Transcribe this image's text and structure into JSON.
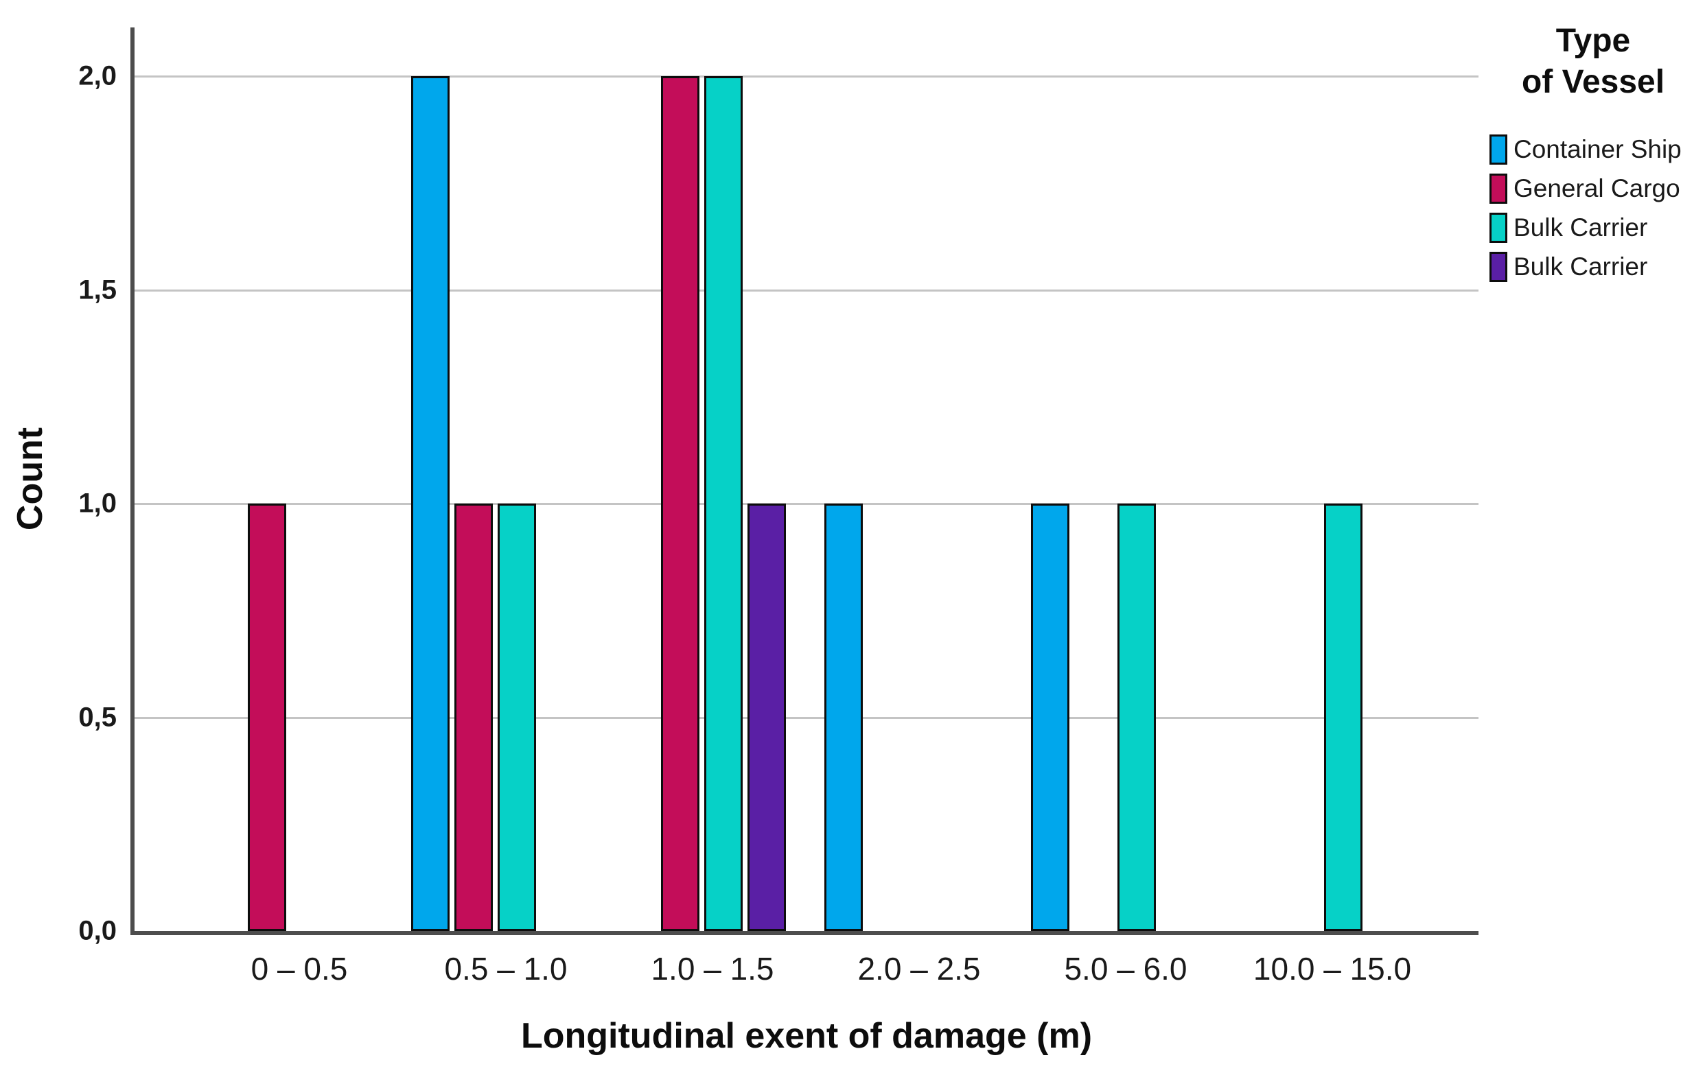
{
  "legend": {
    "title_line1": "Type",
    "title_line2": "of Vessel"
  },
  "chart_data": {
    "type": "bar",
    "title": "",
    "xlabel": "Longitudinal exent of damage (m)",
    "ylabel": "Count",
    "categories": [
      "0 – 0.5",
      "0.5 – 1.0",
      "1.0 – 1.5",
      "2.0 – 2.5",
      "5.0 – 6.0",
      "10.0 – 15.0"
    ],
    "series": [
      {
        "name": "Container Ship",
        "color": "#00a7ec",
        "values": [
          0,
          2,
          0,
          1,
          1,
          0
        ]
      },
      {
        "name": "General Cargo",
        "color": "#c30d59",
        "values": [
          1,
          1,
          2,
          0,
          0,
          0
        ]
      },
      {
        "name": "Bulk Carrier",
        "color": "#06d1c7",
        "values": [
          0,
          1,
          2,
          0,
          1,
          1
        ]
      },
      {
        "name": "Bulk Carrier",
        "color": "#5a1fa5",
        "values": [
          0,
          0,
          1,
          0,
          0,
          0
        ]
      }
    ],
    "y_ticks": [
      {
        "label": "0,0",
        "value": 0.0
      },
      {
        "label": "0,5",
        "value": 0.5
      },
      {
        "label": "1,0",
        "value": 1.0
      },
      {
        "label": "1,5",
        "value": 1.5
      },
      {
        "label": "2,0",
        "value": 2.0
      }
    ],
    "ylim": [
      0.0,
      2.0
    ],
    "grid": true,
    "legend_position": "right",
    "colors": {
      "gridline": "#c4c4c4",
      "axis": "#4d4d4d",
      "text": "#1a1a1a"
    }
  }
}
